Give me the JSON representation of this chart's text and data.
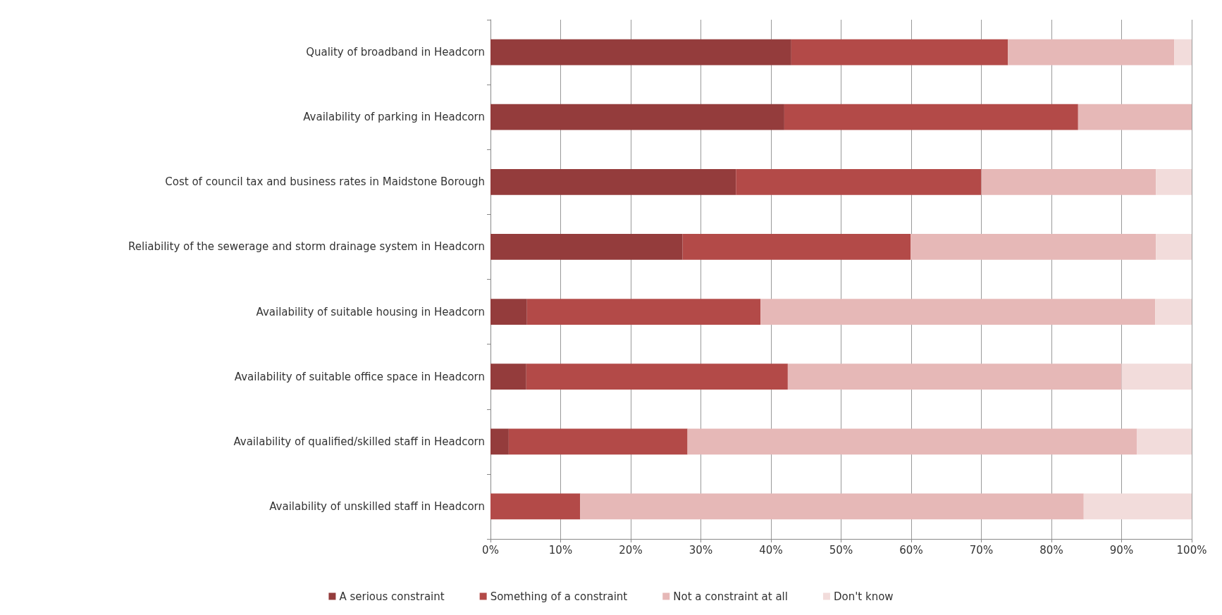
{
  "chart_data": {
    "type": "bar",
    "orientation": "horizontal",
    "stacked": true,
    "categories": [
      "Quality of broadband in Headcorn",
      "Availability of parking in Headcorn",
      "Cost of council tax and business rates in Maidstone Borough",
      "Reliability of the sewerage and storm drainage system in Headcorn",
      "Availability of suitable housing in Headcorn",
      "Availability of suitable office space in Headcorn",
      "Availability of qualified/skilled staff in Headcorn",
      "Availability of unskilled staff in Headcorn"
    ],
    "series": [
      {
        "name": "A serious constraint",
        "color": "#943c3c",
        "values": [
          42.9,
          41.9,
          35.0,
          27.4,
          5.2,
          5.1,
          2.6,
          0
        ]
      },
      {
        "name": "Something of a constraint",
        "color": "#b34a48",
        "values": [
          30.9,
          41.9,
          35.0,
          32.5,
          33.3,
          37.3,
          25.5,
          12.8
        ]
      },
      {
        "name": "Not a constraint at all",
        "color": "#e6b8b7",
        "values": [
          23.7,
          16.2,
          24.9,
          35.0,
          56.3,
          47.6,
          64.1,
          71.8
        ]
      },
      {
        "name": "Don't know",
        "color": "#f2dcdb",
        "values": [
          2.5,
          0,
          5.1,
          5.1,
          5.2,
          10.0,
          7.8,
          15.4
        ]
      }
    ],
    "xlim": [
      0,
      100
    ],
    "xticks": [
      {
        "value": 0,
        "label": "0%"
      },
      {
        "value": 10,
        "label": "10%"
      },
      {
        "value": 20,
        "label": "20%"
      },
      {
        "value": 30,
        "label": "30%"
      },
      {
        "value": 40,
        "label": "40%"
      },
      {
        "value": 50,
        "label": "50%"
      },
      {
        "value": 60,
        "label": "60%"
      },
      {
        "value": 70,
        "label": "70%"
      },
      {
        "value": 80,
        "label": "80%"
      },
      {
        "value": 90,
        "label": "90%"
      },
      {
        "value": 100,
        "label": "100%"
      }
    ],
    "grid": "x",
    "legend": "bottom"
  }
}
